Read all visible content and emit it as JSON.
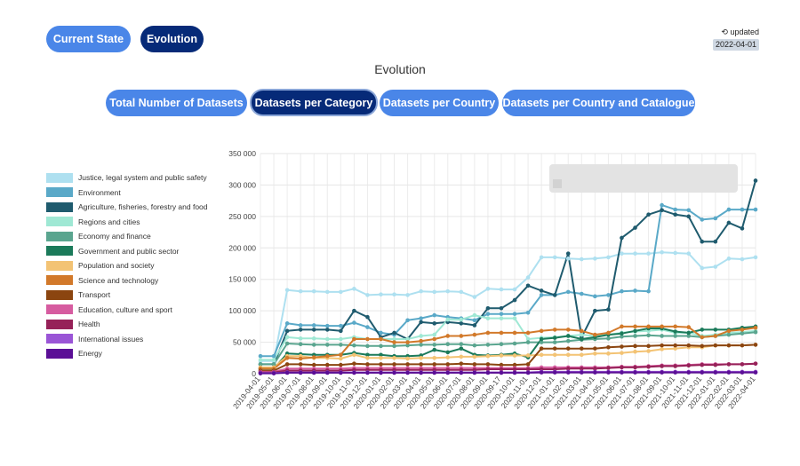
{
  "top_buttons": {
    "current": "Current State",
    "evolution": "Evolution"
  },
  "updated": {
    "label": "updated",
    "date": "2022-04-01",
    "icon": "history-icon"
  },
  "section_title": "Evolution",
  "tabs": [
    "Total Number of Datasets",
    "Datasets per Category",
    "Datasets per Country",
    "Datasets per Country and Catalogue"
  ],
  "chart_data": {
    "type": "line",
    "ylim": [
      0,
      350000
    ],
    "yticks": [
      "350 000",
      "300 000",
      "250 000",
      "200 000",
      "150 000",
      "100 000",
      "50 000",
      "0"
    ],
    "grid": true,
    "legend_position": "left",
    "x": [
      "2019-04-01",
      "2019-05-01",
      "2019-06-01",
      "2019-07-01",
      "2019-08-01",
      "2019-09-01",
      "2019-10-01",
      "2019-11-01",
      "2019-12-01",
      "2020-01-01",
      "2020-02-01",
      "2020-03-01",
      "2020-04-01",
      "2020-05-01",
      "2020-06-01",
      "2020-07-01",
      "2020-08-01",
      "2020-09-01",
      "2020-09-17",
      "2020-10-01",
      "2020-11-01",
      "2020-12-01",
      "2021-01-01",
      "2021-02-01",
      "2021-03-01",
      "2021-04-01",
      "2021-05-01",
      "2021-06-01",
      "2021-07-01",
      "2021-08-01",
      "2021-09-01",
      "2021-10-01",
      "2021-11-01",
      "2021-12-01",
      "2022-01-01",
      "2022-02-01",
      "2022-03-01",
      "2022-04-01"
    ],
    "xtick_labels": [
      "2019-04-01",
      "2019-05-01",
      "2019-06-01",
      "2019-07-01",
      "2019-08-01",
      "2019-09-01",
      "2019-10-01",
      "2019-11-01",
      "2019-12-01",
      "2020-01-01",
      "2020-02-01",
      "2020-03-01",
      "2020-04-01",
      "2020-05-01",
      "2020-06-01",
      "2020-07-01",
      "2020-08-01",
      "2020-09-01",
      "2020-09-17",
      "2020-10-01",
      "2020-11-01",
      "2020-12-01",
      "2021-01-01",
      "2021-02-01",
      "2021-03-01",
      "2021-04-01",
      "2021-05-01",
      "2021-06-01",
      "2021-07-01",
      "2021-08-01",
      "2021-09-01",
      "2021-10-01",
      "2021-11-01",
      "2021-12-01",
      "2022-01-01",
      "2022-02-01",
      "2022-03-01",
      "2022-04-01"
    ],
    "series": [
      {
        "name": "Justice, legal system and public safety",
        "color": "#aee0f0",
        "values": [
          20000,
          20000,
          133000,
          131000,
          131000,
          130000,
          130000,
          135000,
          125000,
          126000,
          126000,
          125000,
          131000,
          130000,
          131000,
          130000,
          122000,
          135000,
          134000,
          134000,
          153000,
          185000,
          185000,
          183000,
          182000,
          183000,
          185000,
          191000,
          191000,
          191000,
          193000,
          192000,
          191000,
          168000,
          170000,
          183000,
          182000,
          185000
        ]
      },
      {
        "name": "Environment",
        "color": "#5aa9c8",
        "values": [
          28000,
          28000,
          80000,
          77000,
          77000,
          76000,
          76000,
          81000,
          74000,
          65000,
          62000,
          85000,
          88000,
          93000,
          90000,
          88000,
          85000,
          95000,
          95000,
          95000,
          97000,
          125000,
          125000,
          130000,
          127000,
          123000,
          125000,
          131000,
          132000,
          131000,
          268000,
          261000,
          260000,
          245000,
          247000,
          261000,
          261000,
          261000
        ]
      },
      {
        "name": "Agriculture, fisheries, forestry and food",
        "color": "#1f5b6e",
        "values": [
          15000,
          15000,
          68000,
          70000,
          70000,
          70000,
          68000,
          100000,
          90000,
          58000,
          65000,
          55000,
          82000,
          80000,
          82000,
          80000,
          77000,
          104000,
          104000,
          117000,
          140000,
          132000,
          125000,
          191000,
          58000,
          100000,
          102000,
          216000,
          232000,
          253000,
          260000,
          253000,
          250000,
          210000,
          210000,
          240000,
          231000,
          307000
        ]
      },
      {
        "name": "Regions and cities",
        "color": "#9fe8d4",
        "values": [
          22000,
          22000,
          58000,
          56000,
          56000,
          55000,
          55000,
          58000,
          55000,
          55000,
          55000,
          55000,
          60000,
          62000,
          86000,
          86000,
          93000,
          88000,
          88000,
          88000,
          55000,
          57000,
          58000,
          60000,
          62000,
          60000,
          62000,
          65000,
          67000,
          68000,
          70000,
          65000,
          65000,
          60000,
          62000,
          65000,
          66000,
          68000
        ]
      },
      {
        "name": "Economy and finance",
        "color": "#5aa58f",
        "values": [
          15000,
          15000,
          48000,
          47000,
          46000,
          46000,
          46000,
          45000,
          44000,
          44000,
          44000,
          45000,
          46000,
          46000,
          47000,
          47000,
          45000,
          46000,
          47000,
          48000,
          50000,
          50000,
          50000,
          52000,
          54000,
          55000,
          56000,
          59000,
          60000,
          61000,
          60000,
          60000,
          60000,
          58000,
          60000,
          62000,
          64000,
          66000
        ]
      },
      {
        "name": "Government and public sector",
        "color": "#1b7a5a",
        "values": [
          8000,
          8000,
          32000,
          31000,
          30000,
          30000,
          30000,
          33000,
          30000,
          30000,
          28000,
          28000,
          29000,
          38000,
          34000,
          40000,
          30000,
          29000,
          30000,
          32000,
          26000,
          55000,
          57000,
          60000,
          55000,
          58000,
          62000,
          64000,
          68000,
          72000,
          72000,
          67000,
          65000,
          70000,
          70000,
          70000,
          73000,
          75000
        ]
      },
      {
        "name": "Population and society",
        "color": "#f3c374",
        "values": [
          10000,
          10000,
          28000,
          28000,
          25000,
          25000,
          24000,
          30000,
          25000,
          25000,
          25000,
          24000,
          25000,
          25000,
          26000,
          27000,
          27000,
          28000,
          29000,
          29000,
          29000,
          30000,
          30000,
          30000,
          30000,
          32000,
          32000,
          33000,
          35000,
          36000,
          39000,
          40000,
          42000,
          42000,
          45000,
          45000,
          45000,
          46000
        ]
      },
      {
        "name": "Science and technology",
        "color": "#d2792a",
        "values": [
          8000,
          8000,
          25000,
          24000,
          26000,
          28000,
          30000,
          55000,
          55000,
          55000,
          50000,
          50000,
          52000,
          55000,
          60000,
          60000,
          62000,
          65000,
          65000,
          65000,
          65000,
          68000,
          70000,
          70000,
          68000,
          62000,
          65000,
          75000,
          75000,
          75000,
          75000,
          75000,
          74000,
          58000,
          60000,
          68000,
          70000,
          73000
        ]
      },
      {
        "name": "Transport",
        "color": "#8b4510",
        "values": [
          5000,
          5000,
          15000,
          15000,
          14000,
          14000,
          14000,
          16000,
          15000,
          15000,
          15000,
          15000,
          15000,
          15000,
          15000,
          16000,
          15000,
          15000,
          14000,
          14000,
          15000,
          40000,
          40000,
          40000,
          40000,
          40000,
          42000,
          43000,
          44000,
          44000,
          45000,
          45000,
          45000,
          44000,
          45000,
          45000,
          45000,
          46000
        ]
      },
      {
        "name": "Education, culture and sport",
        "color": "#d65ca0",
        "values": [
          3000,
          3000,
          8000,
          8000,
          8000,
          8000,
          8000,
          9000,
          9000,
          9000,
          9000,
          9000,
          9000,
          9000,
          9000,
          9000,
          9000,
          9000,
          9000,
          9000,
          9000,
          10000,
          10000,
          10000,
          10000,
          10000,
          10000,
          11000,
          11000,
          12000,
          13000,
          13000,
          14000,
          15000,
          15000,
          15000,
          15000,
          16000
        ]
      },
      {
        "name": "Health",
        "color": "#962158",
        "values": [
          2000,
          2000,
          5000,
          5000,
          5000,
          5000,
          5000,
          6000,
          6000,
          6000,
          6000,
          6000,
          6000,
          6000,
          6000,
          6000,
          6000,
          7000,
          7000,
          7000,
          7000,
          7000,
          7000,
          8000,
          8000,
          8000,
          9000,
          10000,
          10000,
          11000,
          12000,
          12000,
          13000,
          14000,
          14000,
          15000,
          15000,
          16000
        ]
      },
      {
        "name": "International issues",
        "color": "#9a55d6",
        "values": [
          1000,
          1000,
          2000,
          2000,
          2000,
          2000,
          2000,
          2000,
          2000,
          2000,
          2000,
          2000,
          2000,
          2000,
          2000,
          2000,
          2000,
          2000,
          2000,
          2000,
          2000,
          3000,
          3000,
          3000,
          3000,
          3000,
          3000,
          3000,
          3000,
          3000,
          3000,
          3000,
          3000,
          3000,
          3000,
          3000,
          3000,
          3000
        ]
      },
      {
        "name": "Energy",
        "color": "#5b0f96",
        "values": [
          500,
          500,
          1500,
          1500,
          1500,
          1500,
          1500,
          1500,
          1500,
          1500,
          1500,
          1500,
          1500,
          1500,
          1500,
          1500,
          1500,
          1500,
          1500,
          1500,
          1500,
          2000,
          2000,
          2000,
          2000,
          2000,
          2000,
          2000,
          2000,
          2000,
          2000,
          2000,
          2000,
          2000,
          2000,
          2000,
          2000,
          2000
        ]
      }
    ]
  }
}
